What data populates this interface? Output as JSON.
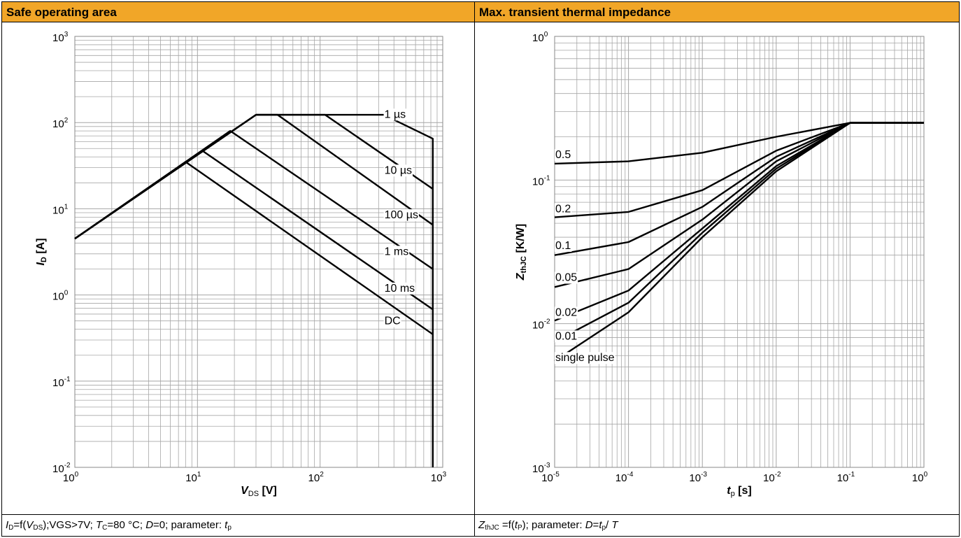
{
  "left": {
    "title": "Safe operating area",
    "footer": {
      "p1": "I",
      "p2": "D",
      "p3": "=f(",
      "p4": "V",
      "p5": "DS",
      "p6": ");VGS>7V;  ",
      "p7": "T",
      "p8": "C",
      "p9": "=80 °C; ",
      "p10": "D",
      "p11": "=0; parameter: ",
      "p12": "t",
      "p13": "p"
    }
  },
  "right": {
    "title": "Max. transient thermal impedance",
    "footer": {
      "p1": "Z",
      "p2": "thJC",
      "p3": " =f(",
      "p4": "t",
      "p5": "P",
      "p6": "); parameter: ",
      "p7": "D",
      "p8": "=",
      "p9": "t",
      "p10": "p",
      "p11": "/ ",
      "p12": "T"
    }
  },
  "chart_data": [
    {
      "type": "line",
      "title": "Safe operating area",
      "xlabel_main": "V",
      "xlabel_sub": "DS",
      "xlabel_unit": " [V]",
      "ylabel_main": "I",
      "ylabel_sub": "D",
      "ylabel_unit": " [A]",
      "x_scale": "log",
      "y_scale": "log",
      "xlim": [
        1,
        1000
      ],
      "ylim": [
        0.01,
        1000
      ],
      "x_ticks": [
        {
          "base": "10",
          "exp": "0"
        },
        {
          "base": "10",
          "exp": "1"
        },
        {
          "base": "10",
          "exp": "2"
        },
        {
          "base": "10",
          "exp": "3"
        }
      ],
      "y_ticks": [
        {
          "base": "10",
          "exp": "-2"
        },
        {
          "base": "10",
          "exp": "-1"
        },
        {
          "base": "10",
          "exp": "0"
        },
        {
          "base": "10",
          "exp": "1"
        },
        {
          "base": "10",
          "exp": "2"
        },
        {
          "base": "10",
          "exp": "3"
        }
      ],
      "grid": true,
      "series": [
        {
          "name": "1 µs",
          "x": [
            1,
            30,
            330,
            830,
            830
          ],
          "y": [
            4.5,
            123,
            123,
            65,
            0.01
          ],
          "label_at": [
            330,
            125
          ]
        },
        {
          "name": "10 µs",
          "x": [
            1,
            30,
            110,
            830
          ],
          "y": [
            4.5,
            123,
            123,
            17
          ],
          "label_at": [
            330,
            28
          ]
        },
        {
          "name": "100 µs",
          "x": [
            1,
            30,
            45,
            830
          ],
          "y": [
            4.5,
            123,
            123,
            6.5
          ],
          "label_at": [
            330,
            8.5
          ]
        },
        {
          "name": "1 ms",
          "x": [
            1,
            18.5,
            830
          ],
          "y": [
            4.5,
            80,
            2.0
          ],
          "label_at": [
            330,
            3.2
          ]
        },
        {
          "name": "10 ms",
          "x": [
            1,
            11,
            830
          ],
          "y": [
            4.5,
            47,
            0.68
          ],
          "label_at": [
            330,
            1.2
          ]
        },
        {
          "name": "DC",
          "x": [
            1,
            8,
            830
          ],
          "y": [
            4.5,
            35,
            0.35
          ],
          "label_at": [
            330,
            0.5
          ]
        }
      ]
    },
    {
      "type": "line",
      "title": "Max. transient thermal impedance",
      "xlabel_main": "t",
      "xlabel_sub": "p",
      "xlabel_unit": " [s]",
      "ylabel_main": "Z",
      "ylabel_sub": "thJC",
      "ylabel_unit": " [K/W]",
      "x_scale": "log",
      "y_scale": "log",
      "xlim": [
        1e-05,
        1
      ],
      "ylim": [
        0.001,
        1
      ],
      "x_ticks": [
        {
          "base": "10",
          "exp": "-5"
        },
        {
          "base": "10",
          "exp": "-4"
        },
        {
          "base": "10",
          "exp": "-3"
        },
        {
          "base": "10",
          "exp": "-2"
        },
        {
          "base": "10",
          "exp": "-1"
        },
        {
          "base": "10",
          "exp": "0"
        }
      ],
      "y_ticks": [
        {
          "base": "10",
          "exp": "-3"
        },
        {
          "base": "10",
          "exp": "-2"
        },
        {
          "base": "10",
          "exp": "-1"
        },
        {
          "base": "10",
          "exp": "0"
        }
      ],
      "grid": true,
      "series": [
        {
          "name": "0.5",
          "x": [
            1e-05,
            0.0001,
            0.001,
            0.01,
            0.1,
            1
          ],
          "y": [
            0.13,
            0.135,
            0.155,
            0.2,
            0.25,
            0.25
          ],
          "label_at": [
            1e-05,
            0.15
          ]
        },
        {
          "name": "0.2",
          "x": [
            1e-05,
            0.0001,
            0.001,
            0.01,
            0.1,
            1
          ],
          "y": [
            0.055,
            0.06,
            0.085,
            0.16,
            0.25,
            0.25
          ],
          "label_at": [
            1e-05,
            0.063
          ]
        },
        {
          "name": "0.1",
          "x": [
            1e-05,
            0.0001,
            0.001,
            0.01,
            0.1,
            1
          ],
          "y": [
            0.03,
            0.037,
            0.065,
            0.145,
            0.25,
            0.25
          ],
          "label_at": [
            1e-05,
            0.035
          ]
        },
        {
          "name": "0.05",
          "x": [
            1e-05,
            0.0001,
            0.001,
            0.01,
            0.1,
            1
          ],
          "y": [
            0.018,
            0.024,
            0.053,
            0.135,
            0.25,
            0.25
          ],
          "label_at": [
            1e-05,
            0.021
          ]
        },
        {
          "name": "0.02",
          "x": [
            1e-05,
            0.0001,
            0.001,
            0.01,
            0.1,
            1
          ],
          "y": [
            0.0105,
            0.017,
            0.046,
            0.125,
            0.25,
            0.25
          ],
          "label_at": [
            1e-05,
            0.012
          ]
        },
        {
          "name": "0.01",
          "x": [
            1e-05,
            0.0001,
            0.001,
            0.01,
            0.1,
            1
          ],
          "y": [
            0.0075,
            0.014,
            0.043,
            0.12,
            0.25,
            0.25
          ],
          "label_at": [
            1e-05,
            0.0082
          ]
        },
        {
          "name": "single pulse",
          "x": [
            1e-05,
            0.0001,
            0.001,
            0.01,
            0.1,
            1
          ],
          "y": [
            0.0055,
            0.012,
            0.04,
            0.115,
            0.25,
            0.25
          ],
          "label_at": [
            1e-05,
            0.0058
          ]
        }
      ]
    }
  ]
}
